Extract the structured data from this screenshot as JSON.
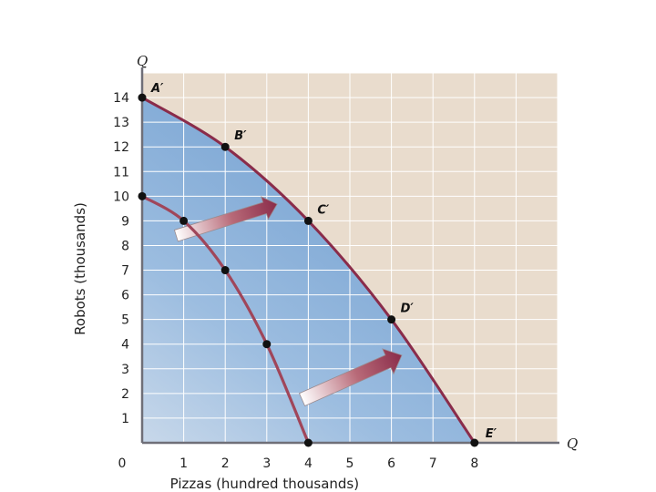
{
  "chart_data": {
    "type": "line",
    "xlabel": "Pizzas (hundred thousands)",
    "ylabel": "Robots (thousands)",
    "x_axis_end_label": "Q",
    "y_axis_end_label": "Q",
    "xlim": [
      0,
      10
    ],
    "ylim": [
      0,
      15
    ],
    "x_ticks": [
      0,
      1,
      2,
      3,
      4,
      5,
      6,
      7,
      8
    ],
    "y_ticks": [
      1,
      2,
      3,
      4,
      5,
      6,
      7,
      8,
      9,
      10,
      11,
      12,
      13,
      14
    ],
    "grid": true,
    "series": [
      {
        "x": [
          0,
          1,
          2,
          3,
          4
        ],
        "y": [
          10,
          9,
          7,
          4,
          0
        ],
        "point_labels": [
          "",
          "",
          "",
          "",
          ""
        ],
        "color": "#a0465a"
      },
      {
        "x": [
          0,
          2,
          4,
          6,
          8
        ],
        "y": [
          14,
          12,
          9,
          5,
          0
        ],
        "point_labels": [
          "A′",
          "B′",
          "C′",
          "D′",
          "E′"
        ],
        "color": "#8a2c4a"
      }
    ],
    "colors": {
      "plot_background": "#e9dccd",
      "feasible_fill": "#8cb2d8",
      "grid": "#ffffff",
      "axis": "#6f6f78",
      "point": "#111111",
      "arrow": "#a0465a"
    }
  }
}
